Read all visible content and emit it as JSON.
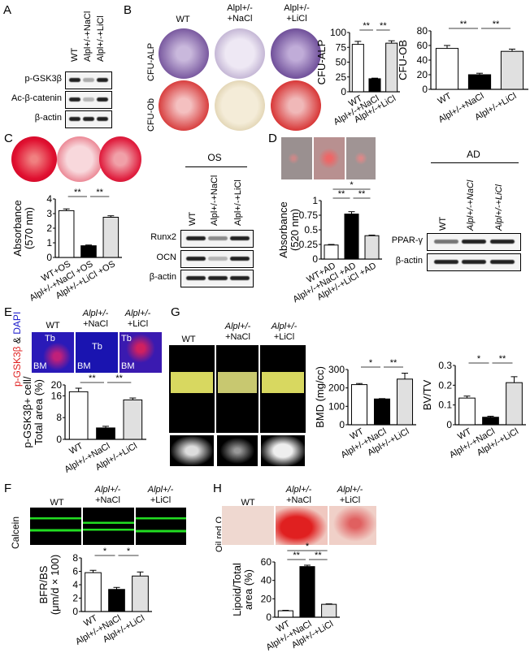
{
  "panels": {
    "A": "A",
    "B": "B",
    "C": "C",
    "D": "D",
    "E": "E",
    "F": "F",
    "G": "G",
    "H": "H"
  },
  "groups": {
    "wt": "WT",
    "nacl_sup": "Alpl+/-",
    "nacl": "+NaCl",
    "licl": "+LiCl",
    "nacl_full": "Alpl+/-+NaCl",
    "licl_full": "Alpl+/-+LiCl"
  },
  "blotA": {
    "lanes": [
      "WT",
      "Alpl+/-+NaCl",
      "Alpl+/-+LiCl"
    ],
    "rows": [
      "p-GSK3β",
      "Ac-β-catenin",
      "β-actin"
    ]
  },
  "blotOS": {
    "title": "OS",
    "lanes": [
      "WT",
      "Alpl+/-+NaCl",
      "Alpl+/-+LiCl"
    ],
    "rows": [
      "Runx2",
      "OCN",
      "β-actin"
    ]
  },
  "blotAD": {
    "title": "AD",
    "lanes": [
      "WT",
      "Alpl+/-+NaCl",
      "Alpl+/-+LiCl"
    ],
    "rows": [
      "PPAR-γ",
      "β-actin"
    ]
  },
  "B": {
    "row_labels": [
      "CFU-ALP",
      "CFU-Ob"
    ]
  },
  "E": {
    "stain_red": "p-GSK3β",
    "stain_amp": " & ",
    "stain_blue": "DAPI",
    "tb": "Tb",
    "bm": "BM"
  },
  "F": {
    "side": "Calcein"
  },
  "H": {
    "side": "Oil red O"
  },
  "colors": {
    "wt": "#ffffff",
    "nacl": "#000000",
    "licl": "#e0e0e0",
    "dapi": "#1a1acc",
    "gsk": "#e02020",
    "calcein": "#22dd22",
    "arrow": "#f0e000"
  },
  "chart_data": [
    {
      "id": "cfu-alp",
      "type": "bar",
      "ylabel": "CFU-ALP",
      "categories": [
        "WT",
        "Alpl+/-+NaCl",
        "Alpl+/-+LiCl"
      ],
      "values": [
        80,
        22,
        82
      ],
      "errors": [
        5,
        1,
        4
      ],
      "ylim": [
        0,
        100
      ],
      "yticks": [
        0,
        25,
        50,
        75,
        100
      ],
      "comparisons": [
        [
          0,
          1,
          "**"
        ],
        [
          1,
          2,
          "**"
        ]
      ]
    },
    {
      "id": "cfu-ob",
      "type": "bar",
      "ylabel": "CFU-OB",
      "categories": [
        "WT",
        "Alpl+/-+NaCl",
        "Alpl+/-+LiCl"
      ],
      "values": [
        56,
        20,
        52
      ],
      "errors": [
        4,
        2,
        3
      ],
      "ylim": [
        0,
        80
      ],
      "yticks": [
        0,
        20,
        40,
        60,
        80
      ],
      "comparisons": [
        [
          0,
          1,
          "**"
        ],
        [
          1,
          2,
          "**"
        ]
      ]
    },
    {
      "id": "c-abs",
      "type": "bar",
      "ylabel": "Absorbance",
      "ylabel2": "(570 nm)",
      "categories": [
        "WT+OS",
        "Alpl+/-+NaCl +OS",
        "Alpl+/-+LiCl +OS"
      ],
      "values": [
        3.2,
        0.8,
        2.75
      ],
      "errors": [
        0.12,
        0.05,
        0.1
      ],
      "ylim": [
        0,
        4
      ],
      "yticks": [
        0,
        1,
        2,
        3,
        4
      ],
      "comparisons": [
        [
          0,
          1,
          "**"
        ],
        [
          1,
          2,
          "**"
        ]
      ]
    },
    {
      "id": "d-abs",
      "type": "bar",
      "ylabel": "Absorbance",
      "ylabel2": "(520 nm)",
      "categories": [
        "WT+AD",
        "Alpl+/-+NaCl +AD",
        "Alpl+/-+LiCl +AD"
      ],
      "values": [
        0.24,
        0.77,
        0.4
      ],
      "errors": [
        0.01,
        0.04,
        0.01
      ],
      "ylim": [
        0,
        1
      ],
      "yticks": [
        0,
        0.25,
        0.5,
        0.75,
        1
      ],
      "yticklabels": [
        "0",
        "0.25",
        "0.5",
        "0.75",
        "1"
      ],
      "comparisons": [
        [
          0,
          1,
          "**"
        ],
        [
          1,
          2,
          "**"
        ],
        [
          0,
          2,
          "*"
        ]
      ]
    },
    {
      "id": "e-gsk",
      "type": "bar",
      "ylabel": "p-GSK3β+ cell/",
      "ylabel2": "Total area (%)",
      "categories": [
        "WT",
        "Alpl+/-+NaCl",
        "Alpl+/-+LiCl"
      ],
      "values": [
        17.5,
        4.2,
        14.5
      ],
      "errors": [
        1.3,
        0.6,
        0.7
      ],
      "ylim": [
        0,
        20
      ],
      "yticks": [
        0,
        8,
        16,
        20
      ],
      "comparisons": [
        [
          0,
          1,
          "**"
        ],
        [
          1,
          2,
          "**"
        ]
      ]
    },
    {
      "id": "g-bmd",
      "type": "bar",
      "ylabel": "BMD (mg/cc)",
      "categories": [
        "WT",
        "Alpl+/-+NaCl",
        "Alpl+/-+LiCl"
      ],
      "values": [
        218,
        140,
        248
      ],
      "errors": [
        6,
        2,
        32
      ],
      "ylim": [
        0,
        300
      ],
      "yticks": [
        0,
        100,
        200,
        300
      ],
      "comparisons": [
        [
          0,
          1,
          "*"
        ],
        [
          1,
          2,
          "**"
        ]
      ]
    },
    {
      "id": "g-bvtv",
      "type": "bar",
      "ylabel": "BV/TV",
      "categories": [
        "WT",
        "Alpl+/-+NaCl",
        "Alpl+/-+LiCl"
      ],
      "values": [
        0.135,
        0.038,
        0.213
      ],
      "errors": [
        0.01,
        0.005,
        0.03
      ],
      "ylim": [
        0,
        0.3
      ],
      "yticks": [
        0,
        0.1,
        0.2,
        0.3
      ],
      "comparisons": [
        [
          0,
          1,
          "*"
        ],
        [
          1,
          2,
          "**"
        ]
      ]
    },
    {
      "id": "f-bfr",
      "type": "bar",
      "ylabel": "BFR/BS",
      "ylabel2": "(μm/d × 100)",
      "categories": [
        "WT",
        "Alpl+/-+NaCl",
        "Alpl+/-+LiCl"
      ],
      "values": [
        5.8,
        3.3,
        5.3
      ],
      "errors": [
        0.35,
        0.3,
        0.6
      ],
      "ylim": [
        0,
        8
      ],
      "yticks": [
        0,
        2,
        4,
        6,
        8
      ],
      "comparisons": [
        [
          0,
          1,
          "*"
        ],
        [
          1,
          2,
          "*"
        ]
      ]
    },
    {
      "id": "h-lipid",
      "type": "bar",
      "ylabel": "Lipoid/Total",
      "ylabel2": "area (%)",
      "categories": [
        "WT",
        "Alpl+/-+NaCl",
        "Alpl+/-+LiCl"
      ],
      "values": [
        7,
        55,
        14
      ],
      "errors": [
        0.5,
        1.5,
        0.5
      ],
      "ylim": [
        0,
        60
      ],
      "yticks": [
        0,
        20,
        40,
        60
      ],
      "comparisons": [
        [
          0,
          1,
          "**"
        ],
        [
          1,
          2,
          "**"
        ],
        [
          0,
          2,
          "*"
        ]
      ]
    }
  ]
}
